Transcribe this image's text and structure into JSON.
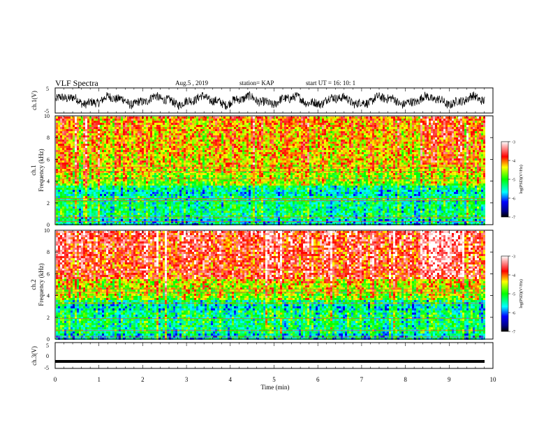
{
  "header": {
    "title": "VLF Spectra",
    "date": "Aug.5  , 2019",
    "station": "station= KAP",
    "start": "start  UT =   16: 10: 1"
  },
  "colorbar": {
    "label": "log(PSD)(V²/Hz)",
    "ticks": [
      "-3",
      "-4",
      "-5",
      "-6",
      "-7"
    ]
  },
  "chart_data": [
    {
      "type": "line",
      "panel": "ch1-waveform",
      "ylabel": "ch.1(V)",
      "ylim": [
        -5,
        5
      ],
      "yticks": [
        -5,
        5
      ],
      "xlim": [
        0,
        10
      ],
      "xunit": "min",
      "description_values": "dense noisy waveform oscillating roughly between -3.5 V and 3.5 V over the ~9.8 min record"
    },
    {
      "type": "heatmap",
      "panel": "ch1-spectrogram",
      "ylabel": "ch.1 Frequency (kHz)",
      "ylim": [
        0,
        10
      ],
      "yticks": [
        0,
        2,
        4,
        6,
        8,
        10
      ],
      "xlim": [
        0,
        10
      ],
      "zlabel": "log(PSD)(V²/Hz)",
      "zlim": [
        -7,
        -3
      ],
      "dominant_level_low_freq": -5.3,
      "dominant_level_high_freq": -4.3,
      "horizontal_lines_khz": [
        0.3,
        0.7,
        2.2,
        2.4,
        4.2,
        4.9,
        5.3
      ]
    },
    {
      "type": "heatmap",
      "panel": "ch2-spectrogram",
      "ylabel": "ch.2 Frequency (kHz)",
      "ylim": [
        0,
        10
      ],
      "yticks": [
        0,
        2,
        4,
        6,
        8,
        10
      ],
      "xlim": [
        0,
        10
      ],
      "zlabel": "log(PSD)(V²/Hz)",
      "zlim": [
        -7,
        -3
      ],
      "dominant_level_low_freq": -5.3,
      "dominant_level_high_freq": -3.8,
      "horizontal_lines_khz": [
        0.2,
        0.8,
        1.9,
        3.3,
        4.3,
        4.6,
        6.3
      ]
    },
    {
      "type": "line",
      "panel": "ch3-waveform",
      "ylabel": "ch.3(V)",
      "ylim": [
        -5,
        5
      ],
      "yticks": [
        -5,
        0,
        5
      ],
      "xlim": [
        0,
        10
      ],
      "xticks": [
        0,
        1,
        2,
        3,
        4,
        5,
        6,
        7,
        8,
        9,
        10
      ],
      "xlabel": "Time (min)",
      "constant_value": -2.3
    }
  ]
}
